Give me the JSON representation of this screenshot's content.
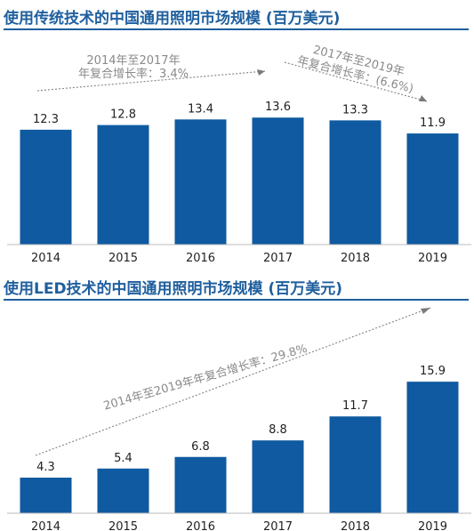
{
  "chart_data": [
    {
      "type": "bar",
      "title": "使用传统技术的中国通用照明市场规模 (百万美元)",
      "categories": [
        "2014",
        "2015",
        "2016",
        "2017",
        "2018",
        "2019"
      ],
      "values": [
        12.3,
        12.8,
        13.4,
        13.6,
        13.3,
        11.9
      ],
      "bar_color": "#0f5aa0",
      "annotations": [
        {
          "line1": "2014年至2017年",
          "line2": "年复合增长率：3.4%"
        },
        {
          "line1": "2017年至2019年",
          "line2": "年复合增长率：(6.6%)"
        }
      ]
    },
    {
      "type": "bar",
      "title": "使用LED技术的中国通用照明市场规模 (百万美元)",
      "categories": [
        "2014",
        "2015",
        "2016",
        "2017",
        "2018",
        "2019"
      ],
      "values": [
        4.3,
        5.4,
        6.8,
        8.8,
        11.7,
        15.9
      ],
      "bar_color": "#0f5aa0",
      "annotations": [
        {
          "line1": "2014年至2019年年复合增长率：29.8%"
        }
      ]
    }
  ]
}
